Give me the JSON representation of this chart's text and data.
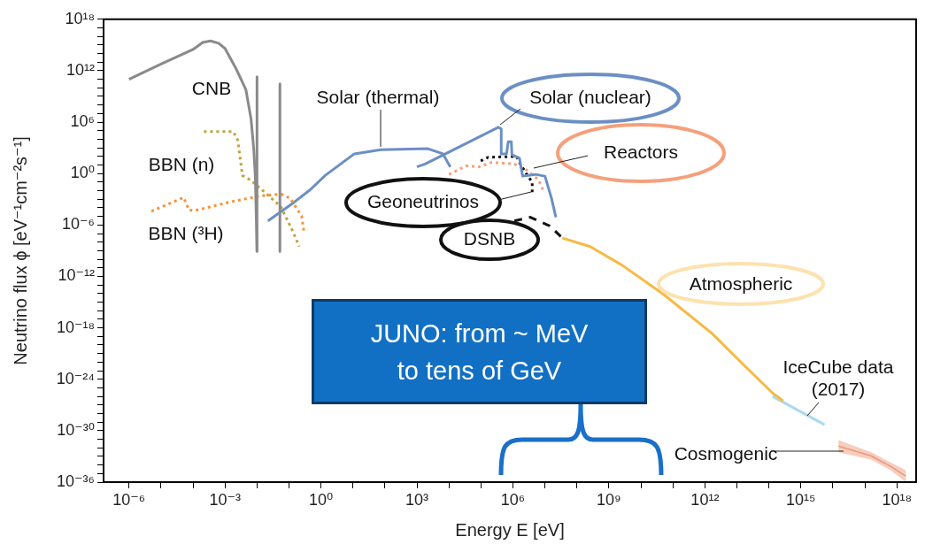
{
  "chart_data": {
    "type": "line",
    "log": "xy",
    "marker": "none",
    "xlabel": "Energy E [eV]",
    "ylabel": "Neutrino flux ϕ [eV⁻¹cm⁻²s⁻¹]",
    "annotations": [
      "JUNO: from ~ MeV\nto tens of GeV"
    ],
    "xlim": [
      1.6e-07,
      4e+18
    ],
    "ylim": [
      1e-36,
      1e+18
    ],
    "xticks": [
      {
        "value": 1e-06,
        "label": "10⁻⁶"
      },
      {
        "value": 1e-05,
        "label": null
      },
      {
        "value": 0.0001,
        "label": null
      },
      {
        "value": 0.001,
        "label": "10⁻³"
      },
      {
        "value": 0.01,
        "label": null
      },
      {
        "value": 0.1,
        "label": null
      },
      {
        "value": 1,
        "label": "10⁰"
      },
      {
        "value": 10,
        "label": null
      },
      {
        "value": 100,
        "label": null
      },
      {
        "value": 1000.0,
        "label": "10³"
      },
      {
        "value": 10000.0,
        "label": null
      },
      {
        "value": 100000.0,
        "label": null
      },
      {
        "value": 1000000.0,
        "label": "10⁶"
      },
      {
        "value": 10000000.0,
        "label": null
      },
      {
        "value": 100000000.0,
        "label": null
      },
      {
        "value": 1000000000.0,
        "label": "10⁹"
      },
      {
        "value": 10000000000.0,
        "label": null
      },
      {
        "value": 100000000000.0,
        "label": null
      },
      {
        "value": 1000000000000.0,
        "label": "10¹²"
      },
      {
        "value": 10000000000000.0,
        "label": null
      },
      {
        "value": 100000000000000.0,
        "label": null
      },
      {
        "value": 1000000000000000.0,
        "label": "10¹⁵"
      },
      {
        "value": 1e+16,
        "label": null
      },
      {
        "value": 1e+17,
        "label": null
      },
      {
        "value": 1e+18,
        "label": "10¹⁸"
      }
    ],
    "yticks": [
      {
        "value": 1e-36,
        "label": "10⁻³⁶"
      },
      {
        "value": 1e-35,
        "label": null
      },
      {
        "value": 1e-34,
        "label": null
      },
      {
        "value": 1e-33,
        "label": null
      },
      {
        "value": 1e-32,
        "label": null
      },
      {
        "value": 1e-31,
        "label": null
      },
      {
        "value": 1e-30,
        "label": "10⁻³⁰"
      },
      {
        "value": 1e-29,
        "label": null
      },
      {
        "value": 1e-28,
        "label": null
      },
      {
        "value": 1e-27,
        "label": null
      },
      {
        "value": 1e-26,
        "label": null
      },
      {
        "value": 1e-25,
        "label": null
      },
      {
        "value": 1e-24,
        "label": "10⁻²⁴"
      },
      {
        "value": 1e-23,
        "label": null
      },
      {
        "value": 1e-22,
        "label": null
      },
      {
        "value": 1e-21,
        "label": null
      },
      {
        "value": 1e-20,
        "label": null
      },
      {
        "value": 1e-19,
        "label": null
      },
      {
        "value": 1e-18,
        "label": "10⁻¹⁸"
      },
      {
        "value": 1e-17,
        "label": null
      },
      {
        "value": 1e-16,
        "label": null
      },
      {
        "value": 1e-15,
        "label": null
      },
      {
        "value": 1e-14,
        "label": null
      },
      {
        "value": 1e-13,
        "label": null
      },
      {
        "value": 1e-12,
        "label": "10⁻¹²"
      },
      {
        "value": 1e-11,
        "label": null
      },
      {
        "value": 1e-10,
        "label": null
      },
      {
        "value": 1e-09,
        "label": null
      },
      {
        "value": 1e-08,
        "label": null
      },
      {
        "value": 1e-07,
        "label": null
      },
      {
        "value": 1e-06,
        "label": "10⁻⁶"
      },
      {
        "value": 1e-05,
        "label": null
      },
      {
        "value": 0.0001,
        "label": null
      },
      {
        "value": 0.001,
        "label": null
      },
      {
        "value": 0.01,
        "label": null
      },
      {
        "value": 0.1,
        "label": null
      },
      {
        "value": 1,
        "label": "10⁰"
      },
      {
        "value": 10,
        "label": null
      },
      {
        "value": 100,
        "label": null
      },
      {
        "value": 1000.0,
        "label": null
      },
      {
        "value": 10000.0,
        "label": null
      },
      {
        "value": 100000.0,
        "label": null
      },
      {
        "value": 1000000.0,
        "label": "10⁶"
      },
      {
        "value": 10000000.0,
        "label": null
      },
      {
        "value": 100000000.0,
        "label": null
      },
      {
        "value": 1000000000.0,
        "label": null
      },
      {
        "value": 10000000000.0,
        "label": null
      },
      {
        "value": 100000000000.0,
        "label": null
      },
      {
        "value": 1000000000000.0,
        "label": "10¹²"
      },
      {
        "value": 10000000000000.0,
        "label": null
      },
      {
        "value": 100000000000000.0,
        "label": null
      },
      {
        "value": 1000000000000000.0,
        "label": null
      },
      {
        "value": 1e+16,
        "label": null
      },
      {
        "value": 1e+17,
        "label": null
      },
      {
        "value": 1e+18,
        "label": "10¹⁸"
      }
    ],
    "series": [
      {
        "name": "CNB",
        "line_style": "solid",
        "color": "#8a8a8a",
        "x": [
          1e-06,
          1e-05,
          0.0001,
          0.0002,
          0.00035,
          0.00063,
          0.001,
          0.0023,
          0.0045,
          0.0065,
          0.0079,
          0.0089,
          0.01
        ],
        "values": [
          100000000000.0,
          6000000000000.0,
          300000000000000.0,
          2000000000000000.0,
          3000000000000000.0,
          1600000000000000.0,
          400000000000000.0,
          1300000000000.0,
          6000000000.0,
          2500000.0,
          800.0,
          0.3,
          8e-10
        ]
      },
      {
        "line_style": "solid",
        "color": "#8a8a8a",
        "x": [
          0.01,
          0.01
        ],
        "values": [
          200000000000.0,
          8e-10
        ]
      },
      {
        "line_style": "solid",
        "color": "#8a8a8a",
        "x": [
          0.052,
          0.052
        ],
        "values": [
          30000000000.0,
          8e-10
        ]
      },
      {
        "name": "BBN (n)",
        "line_style": "dotted",
        "color": "#bfa33f",
        "x": [
          0.00022,
          0.0018,
          0.0025,
          0.0035,
          0.0065,
          0.019,
          0.056,
          0.13,
          0.21
        ],
        "values": [
          80000.0,
          80000.0,
          8000.0,
          0.6,
          0.16,
          0.005,
          0.00013,
          2e-07,
          3e-09
        ]
      },
      {
        "name": "BBN (³H)",
        "line_style": "dotted",
        "color": "#f7923a",
        "x": [
          5e-06,
          5.1e-05,
          7.6e-05,
          0.00012,
          0.0015,
          0.013,
          0.056,
          0.11,
          0.25,
          0.3
        ],
        "values": [
          4e-05,
          0.0016,
          5e-05,
          5e-05,
          0.0005,
          0.0025,
          0.004,
          0.0013,
          1e-05,
          1e-07
        ]
      },
      {
        "name": "Solar (thermal)",
        "line_style": "solid",
        "color": "#6b8fc4",
        "x": [
          0.022,
          0.15,
          0.46,
          1.35,
          11,
          74,
          2200.0,
          6500.0,
          11000.0
        ],
        "values": [
          3e-06,
          0.0005,
          0.013,
          0.6,
          200.0,
          600.0,
          800.0,
          200.0,
          6
        ]
      },
      {
        "name": "Solar (nuclear)",
        "line_style": "solid",
        "color": "#6b8fc4",
        "x": [
          1000.0,
          1800.0,
          350000.0,
          430000.0,
          430000.0,
          630000.0,
          710000.0,
          890000.0,
          930000.0,
          1600000.0,
          2000000.0,
          5000000.0,
          10000000.0,
          16000000.0,
          22000000.0
        ],
        "values": [
          6,
          13,
          250000.0,
          160000.0,
          200.0,
          200.0,
          5000.0,
          5000.0,
          160.0,
          60.0,
          0.5,
          0.8,
          0.5,
          0.0013,
          8e-06
        ]
      },
      {
        "name": "Reactors",
        "line_style": "dotted",
        "color": "#f5a07c",
        "x": [
          10000.0,
          35000.0,
          87000.0,
          220000.0,
          1100000.0,
          2700000.0,
          6200000.0,
          9500000.0
        ],
        "values": [
          0.8,
          8,
          6,
          20.0,
          13.0,
          2.5,
          0.2,
          0.006
        ]
      },
      {
        "name": "Geoneutrinos",
        "line_style": "dotted",
        "color": "#111111",
        "x": [
          98000.0,
          170000.0,
          1300000.0,
          1700000.0,
          2700000.0,
          4000000.0,
          4000000.0
        ],
        "values": [
          30.0,
          80.0,
          100.0,
          13.0,
          0.8,
          0.1,
          0.004
        ]
      },
      {
        "name": "DSNB",
        "line_style": "dashed",
        "color": "#111111",
        "x": [
          1100000.0,
          3500000.0,
          14000000.0,
          35000000.0
        ],
        "values": [
          3e-06,
          8e-06,
          8e-07,
          3e-08
        ]
      },
      {
        "name": "Atmospheric",
        "line_style": "solid",
        "color": "#f7b944",
        "x": [
          35000000.0,
          260000000.0,
          2600000000.0,
          51000000000.0,
          1600000000000.0,
          16000000000000.0,
          130000000000000.0,
          280000000000000.0
        ],
        "values": [
          3e-08,
          3e-09,
          2e-11,
          8e-15,
          2.5e-19,
          5e-23,
          2.5e-26,
          3e-27
        ]
      },
      {
        "name": "IceCube data (2017)",
        "line_style": "solid",
        "color": "#a9daf0",
        "x": [
          130000000000000.0,
          5500000000000000.0
        ],
        "values": [
          1e-26,
          5e-30
        ]
      },
      {
        "name": "Cosmogenic",
        "line_style": "solid",
        "color": "#ec9778",
        "x": [
          1.5e+16,
          1.6e+17,
          6.3e+17,
          1.9e+18
        ],
        "values": [
          1.6e-32,
          1.1e-33,
          7e-35,
          5e-36
        ],
        "upper": [
          8e-32,
          3e-33,
          2e-34,
          2.5e-35
        ],
        "lower": [
          3e-33,
          4e-34,
          2.5e-35,
          1e-36
        ]
      }
    ]
  }
}
